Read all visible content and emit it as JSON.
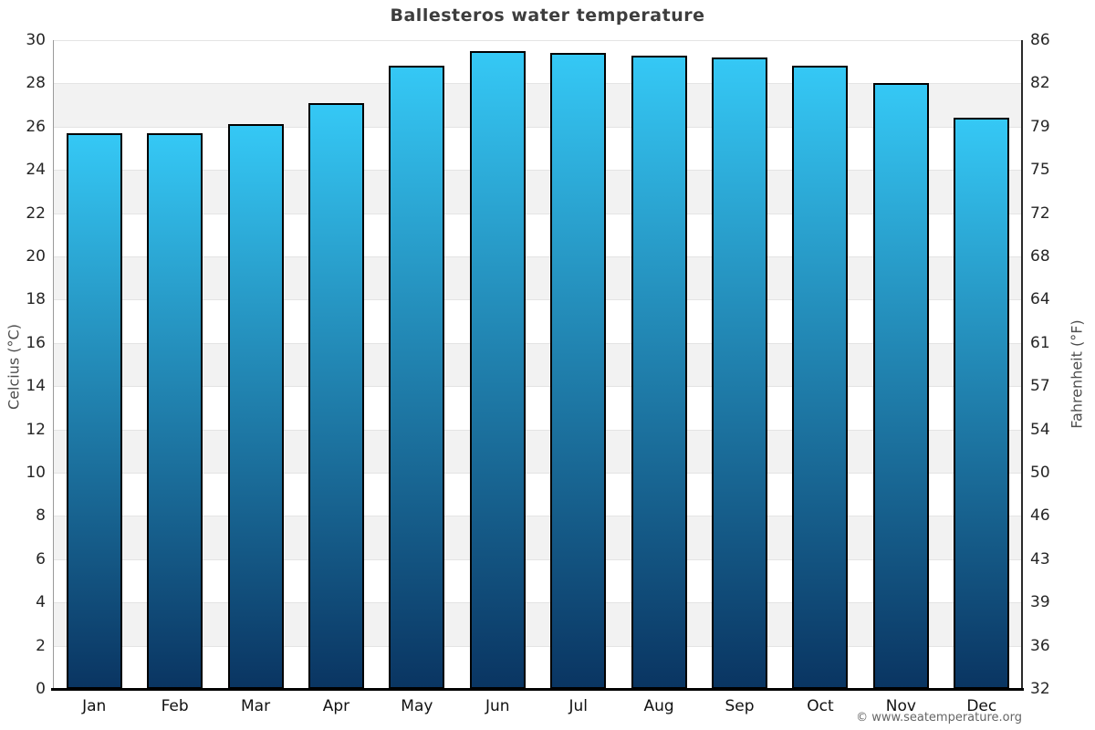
{
  "chart_data": {
    "type": "bar",
    "title": "Ballesteros water temperature",
    "categories": [
      "Jan",
      "Feb",
      "Mar",
      "Apr",
      "May",
      "Jun",
      "Jul",
      "Aug",
      "Sep",
      "Oct",
      "Nov",
      "Dec"
    ],
    "values": [
      25.7,
      25.7,
      26.1,
      27.1,
      28.8,
      29.5,
      29.4,
      29.3,
      29.2,
      28.8,
      28.0,
      26.4
    ],
    "units": "°C",
    "ylabel_left": "Celcius (°C)",
    "ylabel_right": "Fahrenheit (°F)",
    "ylim_celsius": [
      0,
      30
    ],
    "ylim_fahrenheit": [
      32,
      86
    ],
    "yticks_celsius": [
      30,
      28,
      26,
      24,
      22,
      20,
      18,
      16,
      14,
      12,
      10,
      8,
      6,
      4,
      2,
      0
    ],
    "yticks_fahrenheit": [
      86,
      82,
      79,
      75,
      72,
      68,
      64,
      61,
      57,
      54,
      50,
      46,
      43,
      39,
      36,
      32
    ],
    "grid": "horizontal alternating bands every 2°C",
    "legend": "none",
    "colors": {
      "bar_gradient_top": "#35c8f5",
      "bar_gradient_bottom": "#0a3562",
      "bar_border": "#000000",
      "band_shade": "#f2f2f2",
      "band_light": "#ffffff",
      "background": "#ffffff",
      "title_text": "#3d3d3d",
      "tick_text": "#262626",
      "axis_title_text": "#4d4d4d"
    }
  },
  "footer": {
    "credit": "© www.seatemperature.org"
  }
}
